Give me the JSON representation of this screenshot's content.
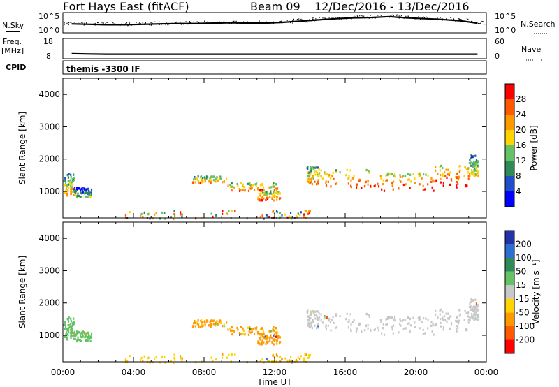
{
  "header": {
    "station": "Fort Hays East (fitACF)",
    "beam": "Beam 09",
    "dates": "12/Dec/2016 - 13/Dec/2016"
  },
  "top_panels": {
    "nsky_label": "N.Sky",
    "nsky_ticks": [
      "10^5",
      "10^0"
    ],
    "nsearch_label": "N.Search",
    "nsearch_ticks": [
      "10^5",
      "10^0"
    ],
    "freq_label_1": "Freq.",
    "freq_label_2": "[MHz]",
    "freq_ticks": [
      "18",
      "8"
    ],
    "nave_label": "Nave",
    "nave_ticks": [
      "60",
      "0"
    ],
    "cpid_label": "CPID",
    "cpid_value": "themis -3300 IF"
  },
  "axes": {
    "ylabel": "Slant Range [km]",
    "yticks": [
      "4000",
      "3000",
      "2000",
      "1000"
    ],
    "xticks": [
      "00:00",
      "04:00",
      "08:00",
      "12:00",
      "16:00",
      "20:00",
      "00:00"
    ],
    "xlabel": "Time UT"
  },
  "power_scale": {
    "label": "Power [dB]",
    "ticks": [
      "28",
      "24",
      "20",
      "16",
      "12",
      "8",
      "4"
    ],
    "colors": [
      "#0000ff",
      "#1f4fc8",
      "#2e8b57",
      "#66c266",
      "#ffd400",
      "#ff9900",
      "#ff5a00",
      "#ff0000"
    ]
  },
  "velocity_scale": {
    "label": "Velocity [m s⁻¹]",
    "ticks": [
      "200",
      "100",
      "50",
      "15",
      "-15",
      "-50",
      "-100",
      "-200"
    ],
    "colors": [
      "#2233aa",
      "#2d6ecf",
      "#2e8b57",
      "#66c266",
      "#c8c8c8",
      "#ffd400",
      "#ff9900",
      "#ff5a00",
      "#ff0000"
    ]
  },
  "chart_data": {
    "type": "heatmap",
    "x_range_hours": [
      0,
      24
    ],
    "y_range_km": [
      180,
      4500
    ],
    "power_range_db": [
      0,
      30
    ],
    "velocity_range_ms": [
      -250,
      250
    ],
    "scatter_regions": [
      {
        "t_start": 0.0,
        "t_end": 0.6,
        "r_low": 900,
        "r_high": 1600,
        "power": 14,
        "velocity": 30
      },
      {
        "t_start": 0.6,
        "t_end": 1.6,
        "r_low": 850,
        "r_high": 1150,
        "power": 8,
        "velocity": 30
      },
      {
        "t_start": 7.3,
        "t_end": 9.3,
        "r_low": 1300,
        "r_high": 1500,
        "power": 16,
        "velocity": -60
      },
      {
        "t_start": 9.3,
        "t_end": 12.3,
        "r_low": 1050,
        "r_high": 1300,
        "power": 18,
        "velocity": -60
      },
      {
        "t_start": 11.0,
        "t_end": 12.3,
        "r_low": 750,
        "r_high": 1050,
        "power": 18,
        "velocity": -70
      },
      {
        "t_start": 13.8,
        "t_end": 14.5,
        "r_low": 1250,
        "r_high": 1800,
        "power": 16,
        "velocity": 0
      },
      {
        "t_start": 14.5,
        "t_end": 18.0,
        "r_low": 1150,
        "r_high": 1700,
        "power": 20,
        "velocity": 0
      },
      {
        "t_start": 18.0,
        "t_end": 21.0,
        "r_low": 1050,
        "r_high": 1600,
        "power": 22,
        "velocity": 0
      },
      {
        "t_start": 21.0,
        "t_end": 23.0,
        "r_low": 1150,
        "r_high": 1850,
        "power": 22,
        "velocity": 0
      },
      {
        "t_start": 23.0,
        "t_end": 23.5,
        "r_low": 1500,
        "r_high": 2150,
        "power": 12,
        "velocity": 0
      },
      {
        "t_start": 3.0,
        "t_end": 14.0,
        "r_low": 180,
        "r_high": 450,
        "power": 10,
        "velocity": -40
      }
    ],
    "series": [
      {
        "name": "N.Sky",
        "values": [
          2.2,
          2.1,
          2.0,
          2.0,
          2.1,
          2.2,
          2.3,
          2.3,
          2.4,
          2.5,
          2.4,
          2.4,
          2.6,
          2.9,
          3.2,
          3.5,
          3.7,
          3.8,
          4.0,
          3.7,
          3.5,
          3.3,
          3.0,
          2.4
        ]
      },
      {
        "name": "Freq.",
        "values": [
          10.5,
          10.3,
          10.2,
          10.2,
          10.2,
          10.2,
          10.2,
          10.2,
          10.2,
          10.2,
          10.2,
          10.2,
          10.2,
          10.2,
          10.2,
          10.2,
          10.2,
          10.2,
          10.2,
          10.2,
          10.2,
          10.2,
          10.2,
          10.2
        ]
      }
    ]
  }
}
